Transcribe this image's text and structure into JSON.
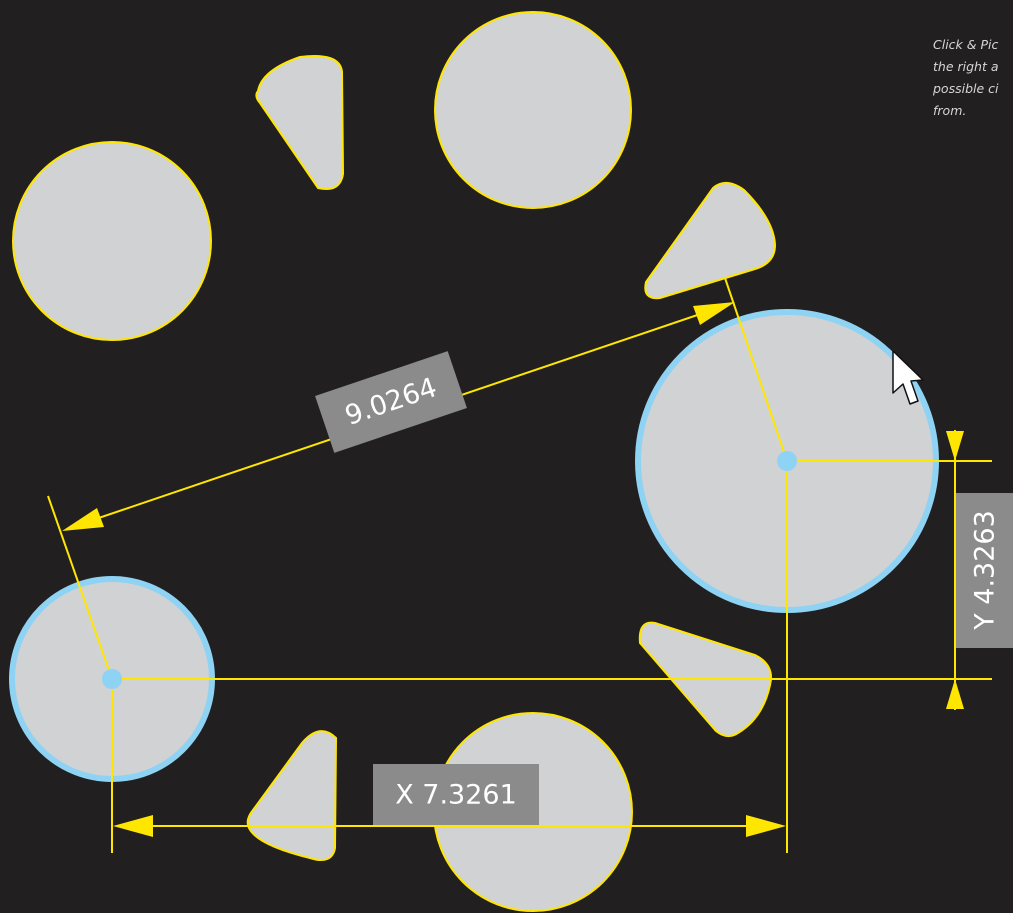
{
  "caption": {
    "lines": [
      "Click & Pic",
      "the right a",
      "possible ci",
      "from."
    ]
  },
  "dimensions": {
    "distance": "9.0264",
    "x": "X 7.3261",
    "y": "Y 4.3263"
  },
  "colors": {
    "background": "#221f20",
    "shape_fill": "#d1d2d4",
    "outline": "#ffe600",
    "selected_outline": "#8fd3f4",
    "label_box": "#8b8b8b",
    "label_text": "#ffffff"
  },
  "icons": {
    "pointer": "mouse-cursor-icon"
  }
}
